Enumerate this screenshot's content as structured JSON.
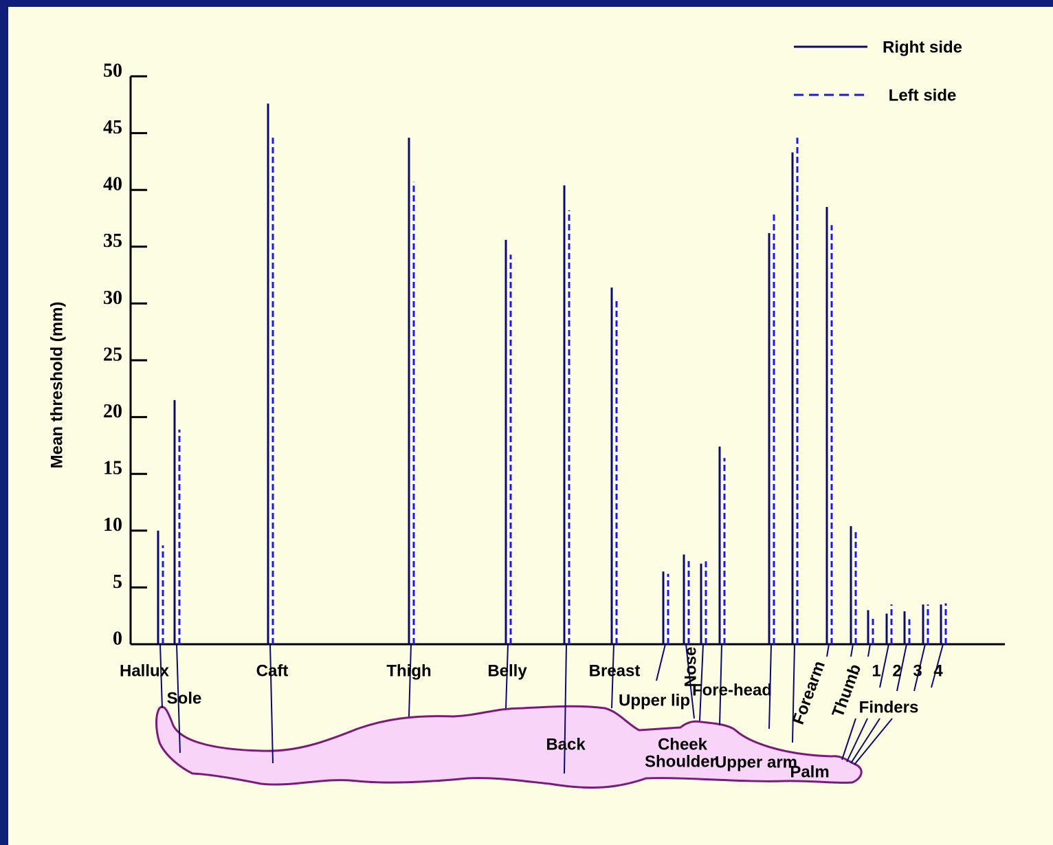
{
  "chart_data": {
    "type": "paired-line",
    "y_axis_label": "Mean threshold (mm)",
    "categories": [
      "Hallux",
      "Sole",
      "Caft",
      "Thigh",
      "Belly",
      "Back",
      "Breast",
      "Upper lip",
      "Nose",
      "Cheek",
      "Fore-head",
      "Shoulder",
      "Upper arm",
      "Forearm",
      "Palm",
      "Thumb",
      "1",
      "2",
      "3",
      "4"
    ],
    "group_label": "Finders",
    "series": [
      {
        "name": "Right side",
        "color": "#0a0a6e",
        "dash": false,
        "values": [
          10.0,
          21.5,
          47.6,
          44.6,
          35.6,
          40.4,
          31.4,
          6.4,
          7.9,
          7.1,
          17.4,
          36.2,
          43.3,
          38.5,
          10.4,
          3.0,
          2.7,
          2.9,
          3.5,
          3.5
        ]
      },
      {
        "name": "Left side",
        "color": "#1a1ae6",
        "dash": true,
        "values": [
          8.7,
          18.9,
          44.6,
          40.7,
          34.3,
          38.2,
          30.5,
          6.2,
          7.4,
          7.3,
          16.4,
          38.1,
          44.6,
          36.9,
          10.0,
          2.3,
          3.5,
          2.2,
          3.5,
          3.6
        ]
      }
    ],
    "ylim": [
      0,
      50
    ],
    "yticks": [
      0,
      5,
      10,
      15,
      20,
      25,
      30,
      35,
      40,
      45,
      50
    ]
  }
}
